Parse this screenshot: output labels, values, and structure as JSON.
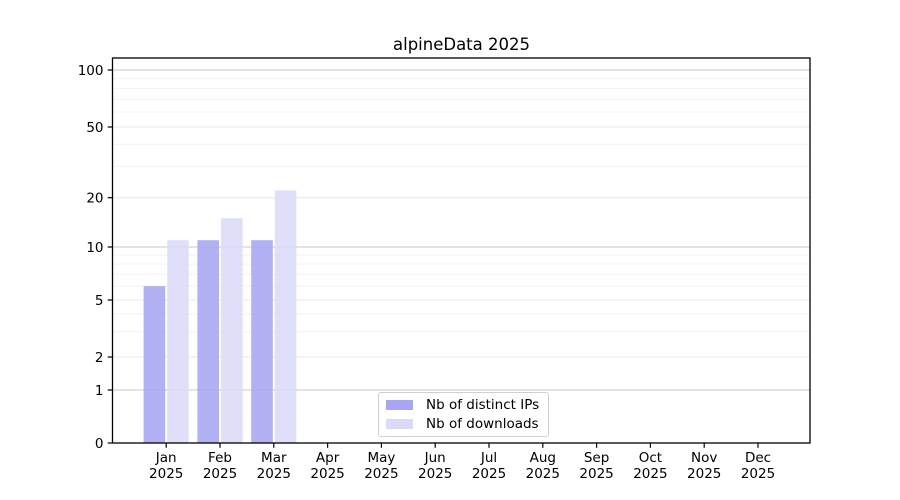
{
  "chart_data": {
    "type": "bar",
    "title": "alpineData 2025",
    "x_labels": [
      {
        "month": "Jan",
        "year": "2025"
      },
      {
        "month": "Feb",
        "year": "2025"
      },
      {
        "month": "Mar",
        "year": "2025"
      },
      {
        "month": "Apr",
        "year": "2025"
      },
      {
        "month": "May",
        "year": "2025"
      },
      {
        "month": "Jun",
        "year": "2025"
      },
      {
        "month": "Jul",
        "year": "2025"
      },
      {
        "month": "Aug",
        "year": "2025"
      },
      {
        "month": "Sep",
        "year": "2025"
      },
      {
        "month": "Oct",
        "year": "2025"
      },
      {
        "month": "Nov",
        "year": "2025"
      },
      {
        "month": "Dec",
        "year": "2025"
      }
    ],
    "series": [
      {
        "name": "Nb of distinct IPs",
        "color": "#a6a6f2",
        "values": [
          6,
          11,
          11,
          0,
          0,
          0,
          0,
          0,
          0,
          0,
          0,
          0
        ]
      },
      {
        "name": "Nb of downloads",
        "color": "#dbdbf9",
        "values": [
          11,
          15,
          22,
          0,
          0,
          0,
          0,
          0,
          0,
          0,
          0,
          0
        ]
      }
    ],
    "y_ticks": [
      0,
      1,
      2,
      5,
      10,
      20,
      50,
      100
    ],
    "y_minor_ticks": [
      3,
      4,
      6,
      7,
      8,
      9,
      30,
      40,
      60,
      70,
      80,
      90
    ],
    "ylim": [
      0,
      116
    ],
    "y_axis_scale": "log-like with linear segment below 1",
    "grid": true,
    "legend_position": "lower center inside plot",
    "colors": {
      "grid_major_power10": "#c9c9c9",
      "grid_major_other": "#e8e8e8",
      "grid_minor": "#f2f2f2",
      "spine": "#000000",
      "text": "#000000"
    }
  }
}
